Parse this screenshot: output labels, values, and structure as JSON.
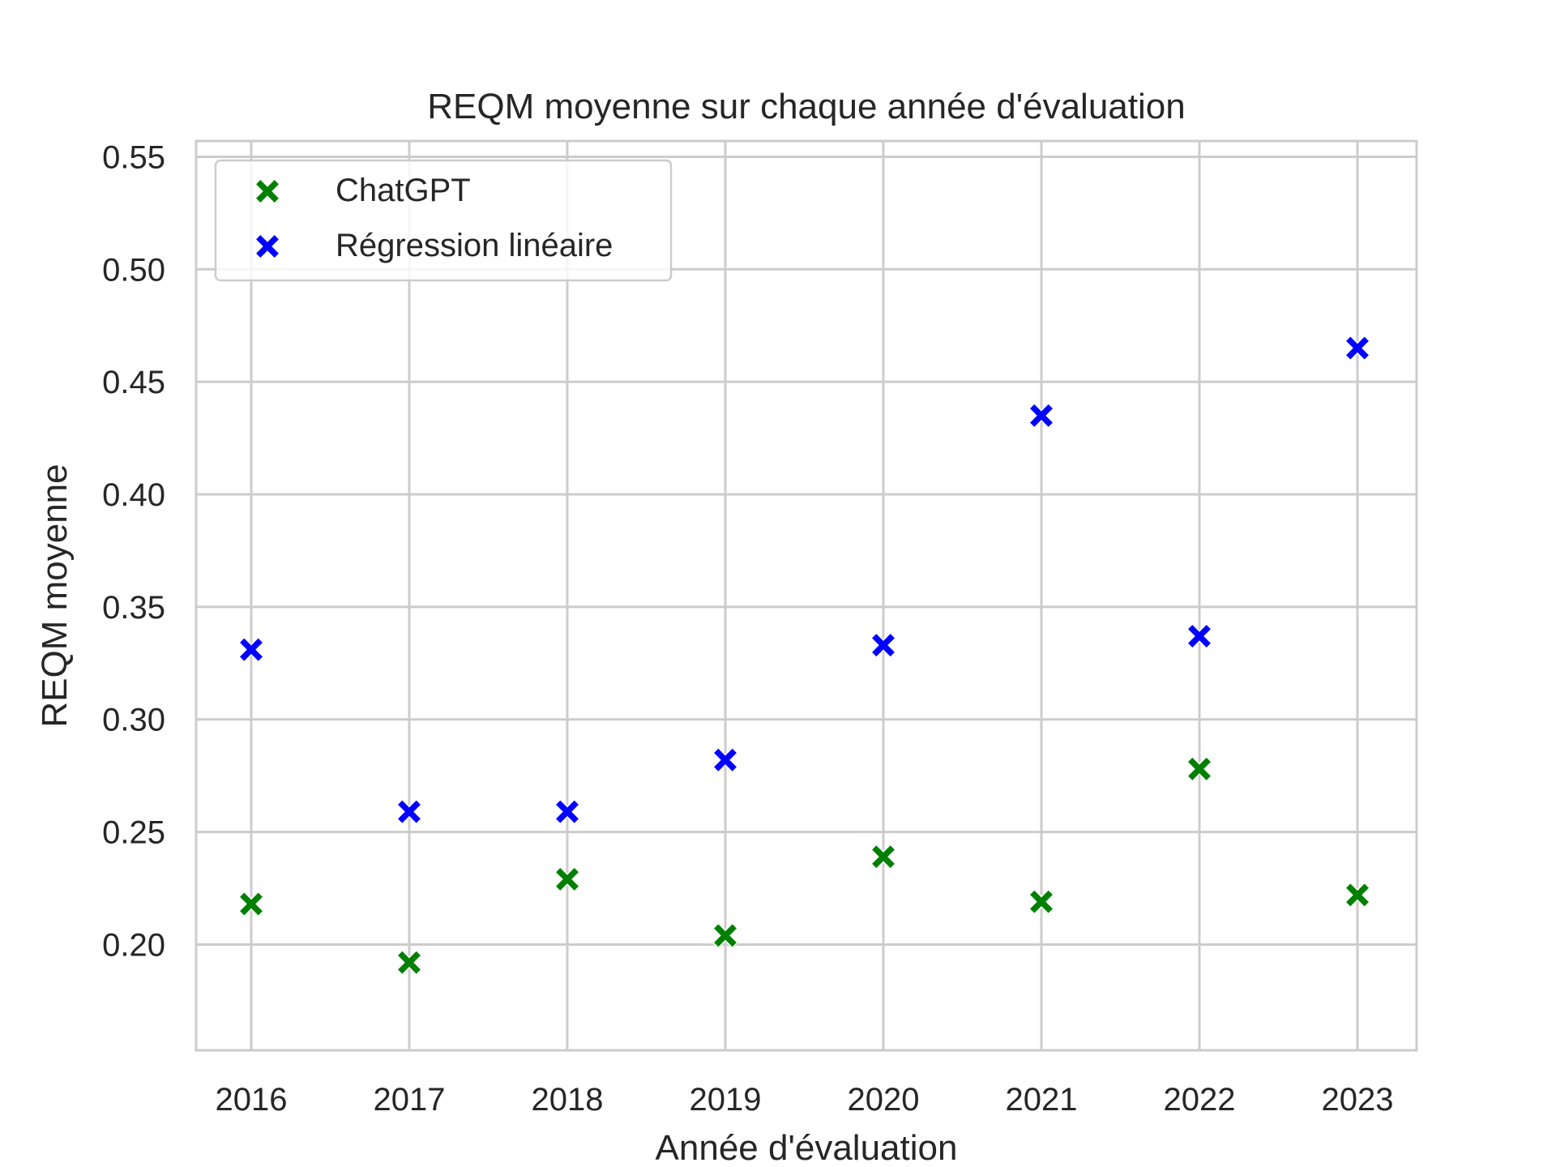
{
  "chart_data": {
    "type": "scatter",
    "title": "REQM moyenne sur chaque année d'évaluation",
    "xlabel": "Année d'évaluation",
    "ylabel": "REQM moyenne",
    "x": [
      2016,
      2017,
      2018,
      2019,
      2020,
      2021,
      2022,
      2023
    ],
    "x_ticks": [
      "2016",
      "2017",
      "2018",
      "2019",
      "2020",
      "2021",
      "2022",
      "2023"
    ],
    "ylim": [
      0.153,
      0.557
    ],
    "y_ticks": [
      0.2,
      0.25,
      0.3,
      0.35,
      0.4,
      0.45,
      0.5,
      0.55
    ],
    "y_tick_labels": [
      "0.20",
      "0.25",
      "0.30",
      "0.35",
      "0.40",
      "0.45",
      "0.50",
      "0.55"
    ],
    "grid": true,
    "legend_position": "top-left",
    "marker": "X",
    "series": [
      {
        "name": "ChatGPT",
        "color": "#008000",
        "values": [
          0.218,
          0.192,
          0.229,
          0.204,
          0.239,
          0.219,
          0.278,
          0.222
        ]
      },
      {
        "name": "Régression linéaire",
        "color": "#0000ff",
        "values": [
          0.331,
          0.259,
          0.259,
          0.282,
          0.333,
          0.435,
          0.337,
          0.465
        ]
      }
    ]
  }
}
